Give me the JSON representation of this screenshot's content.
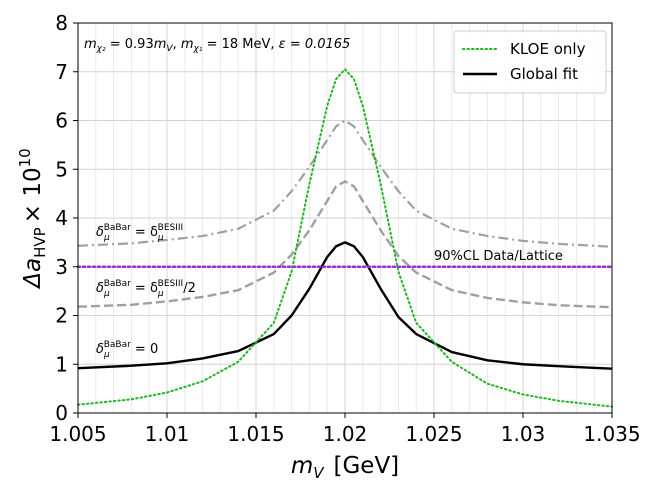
{
  "chart_data": {
    "type": "line",
    "title": "",
    "xlabel_main": "m",
    "xlabel_sub": "V",
    "xlabel_unit": "[GeV]",
    "ylabel_main": "Δa",
    "ylabel_sub": "HVP",
    "ylabel_times": "× 10",
    "ylabel_exp": "10",
    "xlim": [
      1.005,
      1.035
    ],
    "ylim": [
      0,
      8
    ],
    "xticks": [
      1.005,
      1.01,
      1.015,
      1.02,
      1.025,
      1.03,
      1.035
    ],
    "xtick_labels": [
      "1.005",
      "1.01",
      "1.015",
      "1.02",
      "1.025",
      "1.03",
      "1.035"
    ],
    "yticks": [
      0,
      1,
      2,
      3,
      4,
      5,
      6,
      7,
      8
    ],
    "ytick_labels": [
      "0",
      "1",
      "2",
      "3",
      "4",
      "5",
      "6",
      "7",
      "8"
    ],
    "grid": true,
    "legend_position": "top-right",
    "header_annotation": "m_χ2 = 0.93 m_V, m_χ1 = 18 MeV, ε = 0.0165",
    "header_parts": {
      "m": "m",
      "chi2_sub": "χ₂",
      "eq1": " = 0.93",
      "mv_m": "m",
      "mv_sub": "V",
      "comma": ", ",
      "chi1_sub": "χ₁",
      "eq2": " = 18 MeV, ",
      "eps": "ε = 0.0165"
    },
    "reference_line": {
      "label": "90%CL Data/Lattice",
      "y": 3.0,
      "color": "#9b30d0"
    },
    "curve_labels": {
      "besiii": {
        "delta": "δ",
        "mu": "μ",
        "sup1": "BaBar",
        "eq": " = δ",
        "sup2": "BESIII",
        "suffix": ""
      },
      "half": {
        "delta": "δ",
        "mu": "μ",
        "sup1": "BaBar",
        "eq": " = δ",
        "sup2": "BESIII",
        "suffix": "/2"
      },
      "zero": {
        "delta": "δ",
        "mu": "μ",
        "sup1": "BaBar",
        "eq": " = 0"
      }
    },
    "series": [
      {
        "name": "KLOE only",
        "in_legend": true,
        "color": "#22b522",
        "style": "dotted",
        "x": [
          1.005,
          1.008,
          1.01,
          1.012,
          1.014,
          1.016,
          1.017,
          1.018,
          1.019,
          1.0195,
          1.02,
          1.0205,
          1.021,
          1.022,
          1.023,
          1.024,
          1.026,
          1.028,
          1.03,
          1.032,
          1.035
        ],
        "y": [
          0.17,
          0.28,
          0.42,
          0.65,
          1.05,
          1.85,
          2.9,
          4.7,
          6.3,
          6.85,
          7.05,
          6.85,
          6.3,
          4.7,
          2.9,
          1.85,
          1.05,
          0.6,
          0.38,
          0.25,
          0.13
        ]
      },
      {
        "name": "Global fit",
        "in_legend": true,
        "color": "#000000",
        "style": "solid",
        "x": [
          1.005,
          1.008,
          1.01,
          1.012,
          1.014,
          1.016,
          1.017,
          1.018,
          1.019,
          1.0195,
          1.02,
          1.0205,
          1.021,
          1.022,
          1.023,
          1.024,
          1.026,
          1.028,
          1.03,
          1.032,
          1.035
        ],
        "y": [
          0.92,
          0.97,
          1.02,
          1.12,
          1.27,
          1.62,
          2.0,
          2.55,
          3.2,
          3.42,
          3.5,
          3.42,
          3.2,
          2.55,
          1.97,
          1.62,
          1.25,
          1.08,
          1.0,
          0.96,
          0.91
        ]
      },
      {
        "name": "δμ BaBar = δμ BESIII",
        "in_legend": false,
        "color": "#a0a0a0",
        "style": "dashdot",
        "x": [
          1.005,
          1.008,
          1.01,
          1.012,
          1.014,
          1.016,
          1.017,
          1.018,
          1.019,
          1.0195,
          1.02,
          1.0205,
          1.021,
          1.022,
          1.023,
          1.024,
          1.026,
          1.028,
          1.03,
          1.032,
          1.035
        ],
        "y": [
          3.43,
          3.48,
          3.55,
          3.63,
          3.78,
          4.15,
          4.55,
          5.05,
          5.6,
          5.88,
          6.0,
          5.88,
          5.6,
          5.05,
          4.55,
          4.15,
          3.78,
          3.63,
          3.53,
          3.47,
          3.41
        ]
      },
      {
        "name": "δμ BaBar = δμ BESIII/2",
        "in_legend": false,
        "color": "#a0a0a0",
        "style": "dashed",
        "x": [
          1.005,
          1.008,
          1.01,
          1.012,
          1.014,
          1.016,
          1.017,
          1.018,
          1.019,
          1.0195,
          1.02,
          1.0205,
          1.021,
          1.022,
          1.023,
          1.024,
          1.026,
          1.028,
          1.03,
          1.032,
          1.035
        ],
        "y": [
          2.18,
          2.22,
          2.29,
          2.38,
          2.52,
          2.88,
          3.25,
          3.75,
          4.35,
          4.65,
          4.75,
          4.65,
          4.35,
          3.75,
          3.22,
          2.88,
          2.52,
          2.36,
          2.27,
          2.21,
          2.17
        ]
      }
    ]
  }
}
